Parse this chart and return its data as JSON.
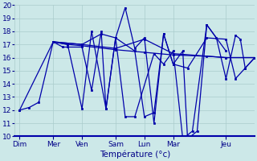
{
  "background_color": "#cce8e8",
  "grid_color": "#aacccc",
  "line_color": "#0000aa",
  "marker_color": "#0000aa",
  "xlabel": "Température (°c)",
  "ylim": [
    10,
    20
  ],
  "yticks": [
    10,
    11,
    12,
    13,
    14,
    15,
    16,
    17,
    18,
    19,
    20
  ],
  "day_labels": [
    "Dim",
    "Mer",
    "Ven",
    "Sam",
    "Lun",
    "Mar",
    "Jeu"
  ],
  "day_positions": [
    2,
    16,
    28,
    42,
    54,
    66,
    88
  ],
  "xlim": [
    0,
    100
  ],
  "series1": [
    [
      2,
      12
    ],
    [
      6,
      12.2
    ],
    [
      10,
      12.6
    ],
    [
      16,
      17.2
    ],
    [
      20,
      16.8
    ],
    [
      22,
      16.8
    ],
    [
      28,
      16.8
    ],
    [
      32,
      13.5
    ],
    [
      36,
      18.0
    ],
    [
      38,
      12.1
    ],
    [
      42,
      17.5
    ],
    [
      46,
      19.8
    ],
    [
      50,
      16.7
    ],
    [
      54,
      17.5
    ],
    [
      58,
      11.0
    ],
    [
      62,
      17.8
    ],
    [
      66,
      15.5
    ],
    [
      70,
      16.5
    ],
    [
      72,
      9.8
    ],
    [
      76,
      10.4
    ],
    [
      80,
      18.5
    ],
    [
      84,
      17.5
    ],
    [
      88,
      14.4
    ],
    [
      92,
      17.7
    ],
    [
      94,
      17.4
    ],
    [
      96,
      15.2
    ],
    [
      100,
      16.0
    ]
  ],
  "series2": [
    [
      2,
      12
    ],
    [
      16,
      17.2
    ],
    [
      28,
      17.0
    ],
    [
      42,
      16.7
    ],
    [
      54,
      17.4
    ],
    [
      66,
      16.3
    ],
    [
      88,
      16.0
    ],
    [
      100,
      16.0
    ]
  ],
  "series3": [
    [
      16,
      17.2
    ],
    [
      22,
      17.0
    ],
    [
      28,
      16.9
    ],
    [
      42,
      16.6
    ],
    [
      54,
      16.4
    ],
    [
      66,
      16.2
    ],
    [
      80,
      16.1
    ],
    [
      88,
      16.0
    ],
    [
      100,
      16.0
    ]
  ],
  "series4": [
    [
      16,
      17.2
    ],
    [
      28,
      17.0
    ],
    [
      36,
      17.8
    ],
    [
      42,
      17.5
    ],
    [
      46,
      11.5
    ],
    [
      50,
      11.5
    ],
    [
      58,
      16.3
    ],
    [
      62,
      15.5
    ],
    [
      66,
      16.5
    ],
    [
      70,
      9.8
    ],
    [
      74,
      10.4
    ],
    [
      80,
      18.5
    ],
    [
      88,
      16.5
    ]
  ],
  "series5": [
    [
      16,
      17.2
    ],
    [
      22,
      17.0
    ],
    [
      28,
      12.1
    ],
    [
      32,
      18.0
    ],
    [
      38,
      12.1
    ],
    [
      42,
      17.5
    ],
    [
      50,
      16.5
    ],
    [
      54,
      11.5
    ],
    [
      58,
      11.8
    ],
    [
      62,
      17.8
    ],
    [
      66,
      15.5
    ],
    [
      72,
      15.2
    ],
    [
      80,
      17.5
    ],
    [
      88,
      17.4
    ],
    [
      92,
      14.4
    ],
    [
      96,
      15.2
    ],
    [
      100,
      16.0
    ]
  ]
}
